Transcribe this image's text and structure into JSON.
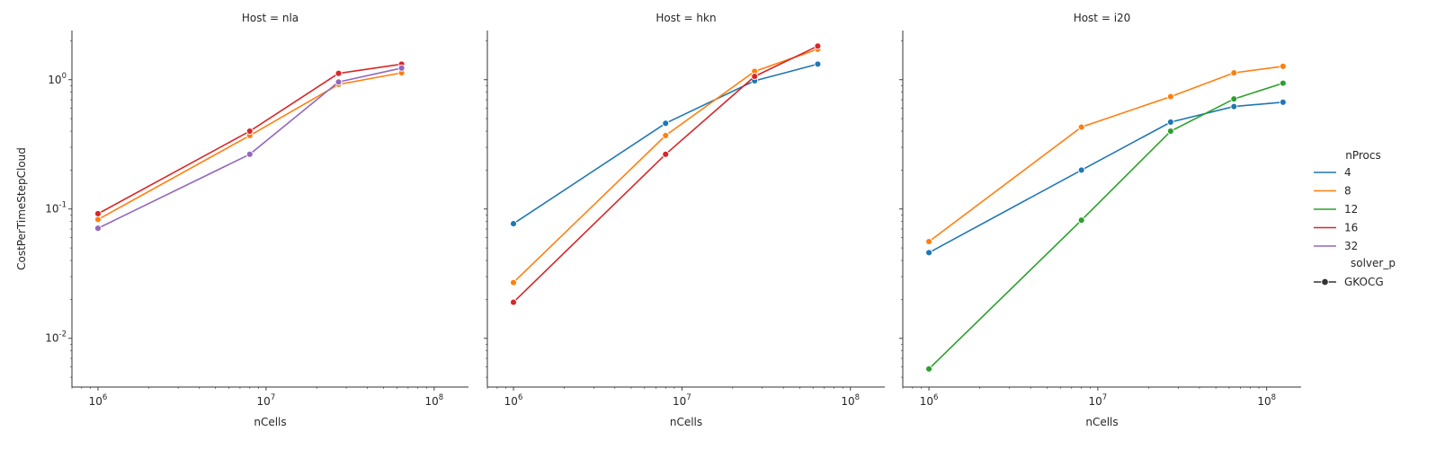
{
  "chart_data": [
    {
      "type": "line",
      "title": "Host = nla",
      "xlabel": "nCells",
      "ylabel": "CostPerTimeStepCloud",
      "xscale": "log",
      "yscale": "log",
      "xlim": [
        700000,
        160000000
      ],
      "ylim": [
        0.0042,
        2.4
      ],
      "x_ticks": [
        1000000,
        10000000,
        100000000
      ],
      "x_tick_labels": [
        "10^6",
        "10^7",
        "10^8"
      ],
      "y_ticks": [
        0.01,
        0.1,
        1
      ],
      "y_tick_labels": [
        "10^-2",
        "10^-1",
        "10^0"
      ],
      "grid": false,
      "series": [
        {
          "name": "8",
          "color": "#ff7f0e",
          "x": [
            1000000,
            8000000,
            27000000,
            64000000
          ],
          "y": [
            0.083,
            0.37,
            0.92,
            1.13
          ]
        },
        {
          "name": "16",
          "color": "#d62728",
          "x": [
            1000000,
            8000000,
            27000000,
            64000000
          ],
          "y": [
            0.092,
            0.4,
            1.12,
            1.32
          ]
        },
        {
          "name": "32",
          "color": "#9467bd",
          "x": [
            1000000,
            8000000,
            27000000,
            64000000
          ],
          "y": [
            0.071,
            0.265,
            0.96,
            1.23
          ]
        }
      ]
    },
    {
      "type": "line",
      "title": "Host = hkn",
      "xlabel": "nCells",
      "ylabel": "",
      "xscale": "log",
      "yscale": "log",
      "xlim": [
        700000,
        160000000
      ],
      "ylim": [
        0.0042,
        2.4
      ],
      "x_ticks": [
        1000000,
        10000000,
        100000000
      ],
      "x_tick_labels": [
        "10^6",
        "10^7",
        "10^8"
      ],
      "y_ticks": [
        0.01,
        0.1,
        1
      ],
      "y_tick_labels": [
        "",
        "",
        ""
      ],
      "grid": false,
      "series": [
        {
          "name": "4",
          "color": "#1f77b4",
          "x": [
            1000000,
            8000000,
            27000000,
            64000000
          ],
          "y": [
            0.077,
            0.46,
            0.98,
            1.32
          ]
        },
        {
          "name": "8",
          "color": "#ff7f0e",
          "x": [
            1000000,
            8000000,
            27000000,
            64000000
          ],
          "y": [
            0.027,
            0.37,
            1.16,
            1.72
          ]
        },
        {
          "name": "16",
          "color": "#d62728",
          "x": [
            1000000,
            8000000,
            27000000,
            64000000
          ],
          "y": [
            0.019,
            0.265,
            1.06,
            1.82
          ]
        }
      ]
    },
    {
      "type": "line",
      "title": "Host = i20",
      "xlabel": "nCells",
      "ylabel": "",
      "xscale": "log",
      "yscale": "log",
      "xlim": [
        700000,
        160000000
      ],
      "ylim": [
        0.0042,
        2.4
      ],
      "x_ticks": [
        1000000,
        10000000,
        100000000
      ],
      "x_tick_labels": [
        "10^6",
        "10^7",
        "10^8"
      ],
      "y_ticks": [
        0.01,
        0.1,
        1
      ],
      "y_tick_labels": [
        "",
        "",
        ""
      ],
      "grid": false,
      "series": [
        {
          "name": "4",
          "color": "#1f77b4",
          "x": [
            1000000,
            8000000,
            27000000,
            64000000,
            125000000
          ],
          "y": [
            0.046,
            0.2,
            0.47,
            0.62,
            0.67
          ]
        },
        {
          "name": "8",
          "color": "#ff7f0e",
          "x": [
            1000000,
            8000000,
            27000000,
            64000000,
            125000000
          ],
          "y": [
            0.056,
            0.43,
            0.74,
            1.13,
            1.27
          ]
        },
        {
          "name": "12",
          "color": "#2ca02c",
          "x": [
            1000000,
            8000000,
            27000000,
            64000000,
            125000000
          ],
          "y": [
            0.0058,
            0.082,
            0.4,
            0.71,
            0.94
          ]
        }
      ]
    }
  ],
  "legend": {
    "placement": "right",
    "hue_title": "nProcs",
    "hue_entries": [
      {
        "label": "4",
        "color": "#1f77b4"
      },
      {
        "label": "8",
        "color": "#ff7f0e"
      },
      {
        "label": "12",
        "color": "#2ca02c"
      },
      {
        "label": "16",
        "color": "#d62728"
      },
      {
        "label": "32",
        "color": "#9467bd"
      }
    ],
    "style_title": "solver_p",
    "style_entries": [
      {
        "label": "GKOCG",
        "color": "#333333"
      }
    ]
  }
}
